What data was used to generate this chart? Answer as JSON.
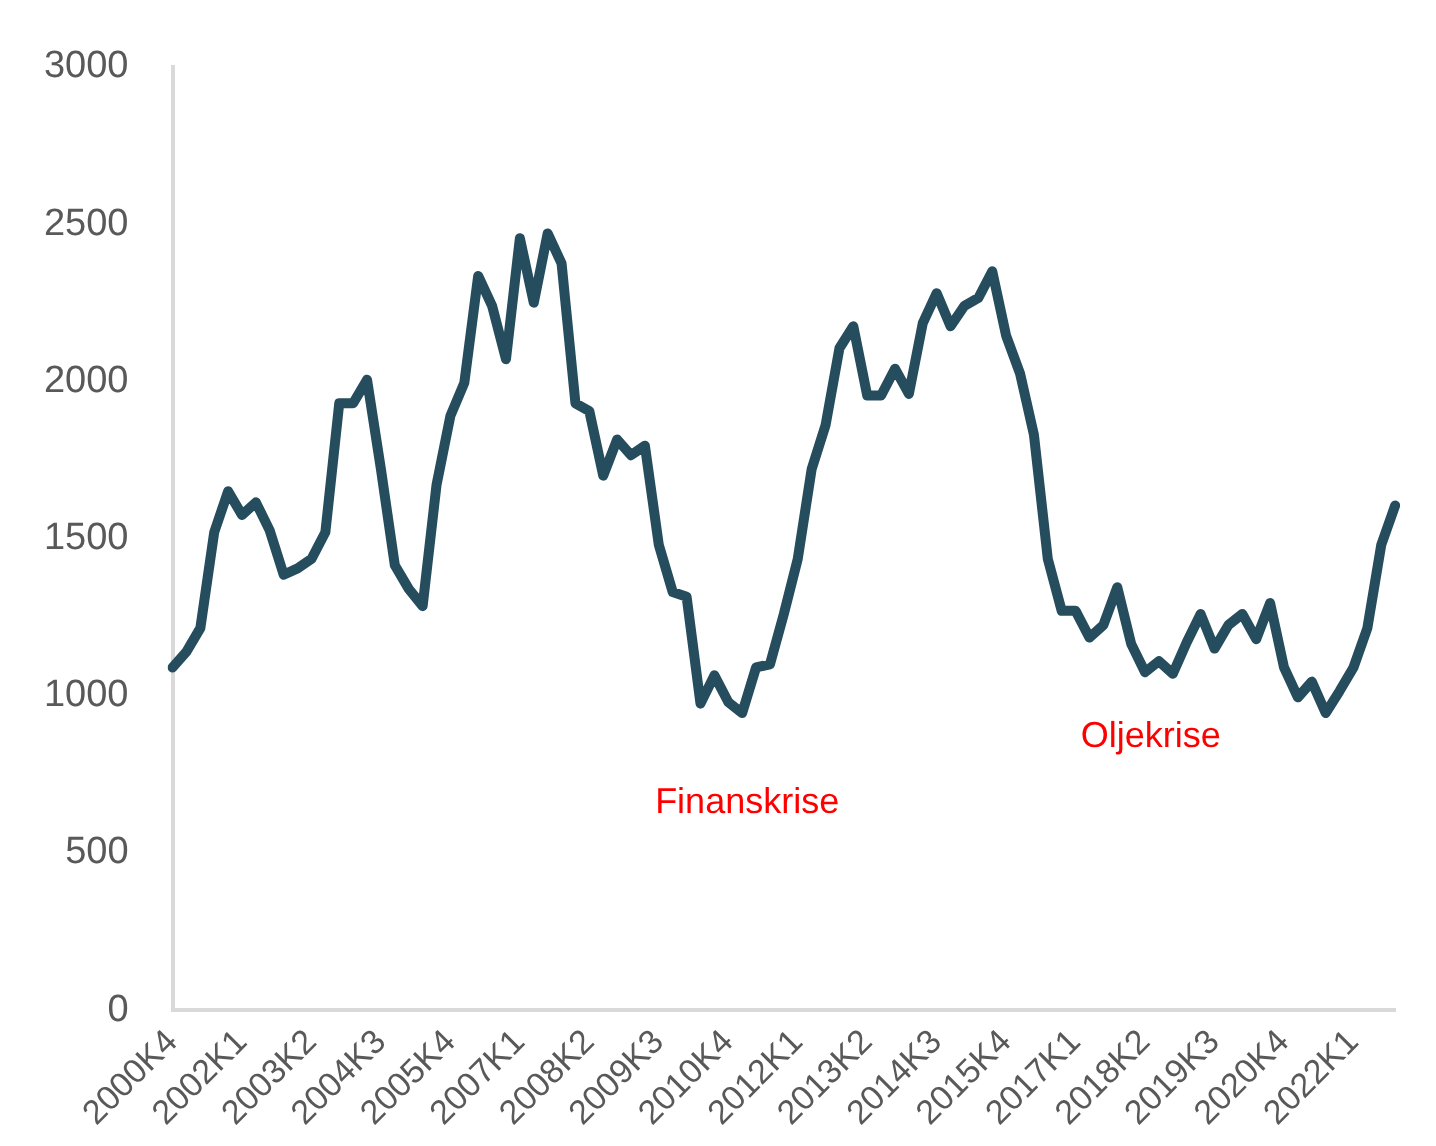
{
  "chart_data": {
    "type": "line",
    "categories": [
      "2000K4",
      null,
      null,
      null,
      null,
      "2002K1",
      null,
      null,
      null,
      null,
      "2003K2",
      null,
      null,
      null,
      null,
      "2004K3",
      null,
      null,
      null,
      null,
      "2005K4",
      null,
      null,
      null,
      null,
      "2007K1",
      null,
      null,
      null,
      null,
      "2008K2",
      null,
      null,
      null,
      null,
      "2009K3",
      null,
      null,
      null,
      null,
      "2010K4",
      null,
      null,
      null,
      null,
      "2012K1",
      null,
      null,
      null,
      null,
      "2013K2",
      null,
      null,
      null,
      null,
      "2014K3",
      null,
      null,
      null,
      null,
      "2015K4",
      null,
      null,
      null,
      null,
      "2017K1",
      null,
      null,
      null,
      null,
      "2018K2",
      null,
      null,
      null,
      null,
      "2019K3",
      null,
      null,
      null,
      null,
      "2020K4",
      null,
      null,
      null,
      null,
      "2022K1",
      null,
      null,
      null
    ],
    "series": [
      {
        "color": "#264d5e",
        "values": [
          1090,
          1140,
          1215,
          1520,
          1650,
          1575,
          1615,
          1525,
          1385,
          1405,
          1435,
          1520,
          1930,
          1930,
          2005,
          1720,
          1415,
          1340,
          1285,
          1670,
          1890,
          1995,
          2335,
          2240,
          2070,
          2455,
          2250,
          2470,
          2375,
          1930,
          1905,
          1700,
          1815,
          1765,
          1795,
          1480,
          1330,
          1315,
          975,
          1065,
          980,
          945,
          1090,
          1100,
          1260,
          1435,
          1720,
          1860,
          2105,
          2175,
          1955,
          1955,
          2040,
          1960,
          2185,
          2280,
          2175,
          2240,
          2265,
          2350,
          2145,
          2025,
          1830,
          1435,
          1270,
          1270,
          1185,
          1225,
          1345,
          1165,
          1075,
          1110,
          1070,
          1170,
          1260,
          1150,
          1225,
          1260,
          1180,
          1295,
          1090,
          995,
          1045,
          945,
          1015,
          1090,
          1215,
          1480,
          1605
        ]
      }
    ],
    "ylim": [
      0,
      3000
    ],
    "yticks": [
      0,
      500,
      1000,
      1500,
      2000,
      2500,
      3000
    ],
    "grid": false,
    "legend": false,
    "marker": "none",
    "line_style": "solid",
    "annotations": [
      "Finanskrise",
      "Oljekrise"
    ]
  }
}
